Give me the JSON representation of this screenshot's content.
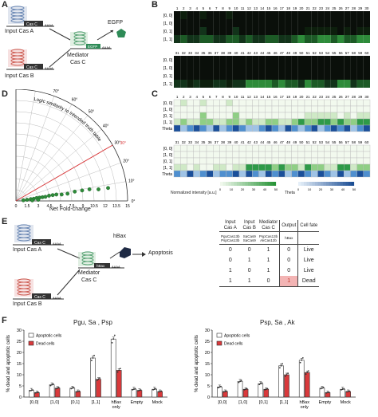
{
  "panels": {
    "A": "A",
    "B": "B",
    "C": "C",
    "D": "D",
    "E": "E",
    "F": "F"
  },
  "panelA": {
    "input_a": "Input Cas A",
    "input_b": "Input Cas B",
    "mediator": "Mediator\nCas C",
    "mediator_l1": "Mediator",
    "mediator_l2": "Cas C",
    "output": "EGFP",
    "cas_c": "Cas C",
    "egfp_box": "EGFP",
    "polyA": "AAAA"
  },
  "panelB": {
    "row_labels": [
      "[0, 0]",
      "[1, 0]",
      "[0, 1]",
      "[1, 1]"
    ],
    "top_numbers": [
      "1",
      "2",
      "3",
      "4",
      "5",
      "6",
      "7",
      "8",
      "9",
      "10",
      "11",
      "12",
      "13",
      "14",
      "15",
      "16",
      "17",
      "18",
      "19",
      "20",
      "21",
      "22",
      "23",
      "24",
      "25",
      "26",
      "27",
      "28",
      "29",
      "30"
    ],
    "bottom_numbers": [
      "31",
      "32",
      "33",
      "34",
      "35",
      "36",
      "37",
      "38",
      "39",
      "40",
      "41",
      "42",
      "43",
      "44",
      "45",
      "46",
      "47",
      "48",
      "49",
      "50",
      "51",
      "52",
      "53",
      "54",
      "55",
      "56",
      "57",
      "58",
      "59",
      "60"
    ]
  },
  "panelC": {
    "row_labels": [
      "[0, 0]",
      "[1, 0]",
      "[0, 1]",
      "[1, 1]",
      "Theta"
    ],
    "top_numbers": [
      "1",
      "2",
      "3",
      "4",
      "5",
      "6",
      "7",
      "8",
      "9",
      "10",
      "11",
      "12",
      "13",
      "14",
      "15",
      "16",
      "17",
      "18",
      "19",
      "20",
      "21",
      "22",
      "23",
      "24",
      "25",
      "26",
      "27",
      "28",
      "29",
      "30"
    ],
    "bottom_numbers": [
      "31",
      "32",
      "33",
      "34",
      "35",
      "36",
      "37",
      "38",
      "39",
      "40",
      "41",
      "42",
      "43",
      "44",
      "45",
      "46",
      "47",
      "48",
      "49",
      "50",
      "51",
      "52",
      "53",
      "54",
      "55",
      "56",
      "57",
      "58",
      "59",
      "60"
    ],
    "colorbar_label": "Normalized intensity [a.u.]",
    "colorbar_ticks": [
      "0",
      "10",
      "20",
      "30",
      "40",
      "50"
    ],
    "theta_label": "Theta",
    "theta_ticks": [
      "0",
      "10",
      "20",
      "30",
      "40",
      "50"
    ],
    "heat_top": [
      [
        0,
        1,
        0,
        0,
        1,
        0,
        0,
        0,
        1,
        0,
        0,
        0,
        0,
        0,
        0,
        0,
        0,
        0,
        0,
        0,
        0,
        0,
        0,
        0,
        0,
        0,
        0,
        0,
        0,
        0
      ],
      [
        0,
        0,
        0,
        0,
        0,
        0,
        0,
        0,
        0,
        0,
        0,
        0,
        0,
        0,
        0,
        0,
        0,
        0,
        0,
        0,
        0,
        0,
        0,
        0,
        0,
        0,
        0,
        0,
        0,
        0
      ],
      [
        0,
        0,
        0,
        0,
        2,
        0,
        0,
        0,
        0,
        2,
        0,
        0,
        0,
        0,
        0,
        0,
        0,
        0,
        0,
        0,
        1,
        1,
        1,
        1,
        1,
        0,
        1,
        0,
        1,
        1
      ],
      [
        1,
        2,
        1,
        1,
        2,
        2,
        1,
        1,
        2,
        2,
        1,
        2,
        1,
        1,
        2,
        2,
        1,
        1,
        2,
        3,
        2,
        2,
        3,
        3,
        2,
        3,
        2,
        2,
        3,
        3
      ]
    ],
    "theta_top": [
      3,
      1,
      2,
      3,
      2,
      1,
      3,
      1,
      2,
      3,
      2,
      1,
      1,
      2,
      3,
      2,
      1,
      3,
      2,
      1,
      2,
      3,
      1,
      2,
      3,
      2,
      3,
      1,
      2,
      3
    ],
    "heat_bottom": [
      [
        0,
        0,
        0,
        0,
        0,
        0,
        0,
        0,
        0,
        0,
        0,
        0,
        0,
        0,
        0,
        0,
        0,
        0,
        0,
        0,
        0,
        0,
        0,
        0,
        0,
        0,
        0,
        0,
        0,
        0
      ],
      [
        0,
        0,
        0,
        0,
        0,
        0,
        0,
        0,
        0,
        0,
        0,
        0,
        0,
        0,
        0,
        0,
        0,
        0,
        0,
        0,
        0,
        0,
        0,
        0,
        0,
        0,
        0,
        0,
        0,
        0
      ],
      [
        0,
        0,
        0,
        0,
        0,
        0,
        0,
        0,
        0,
        0,
        0,
        0,
        0,
        0,
        0,
        0,
        0,
        0,
        0,
        0,
        0,
        0,
        0,
        0,
        0,
        0,
        0,
        0,
        0,
        0
      ],
      [
        1,
        1,
        0,
        1,
        0,
        0,
        1,
        1,
        0,
        1,
        1,
        3,
        3,
        3,
        3,
        2,
        3,
        2,
        2,
        1,
        3,
        2,
        2,
        1,
        1,
        3,
        3,
        1,
        2,
        2
      ]
    ],
    "theta_bottom": [
      2,
      1,
      3,
      1,
      2,
      3,
      1,
      2,
      2,
      3,
      1,
      3,
      2,
      1,
      3,
      2,
      3,
      1,
      2,
      3,
      2,
      1,
      3,
      2,
      1,
      3,
      1,
      2,
      3,
      2
    ]
  },
  "panelD": {
    "xlabel": "Net Fold-change",
    "xticks": [
      "0",
      "1.5",
      "3",
      "4.5",
      "6",
      "7.5",
      "9",
      "10.5",
      "12",
      "13.5",
      "15"
    ],
    "angle_ticks": [
      "0°",
      "10°",
      "20°",
      "30°",
      "40°",
      "50°",
      "60°",
      "70°",
      "80°",
      "90°"
    ],
    "arc_label": "Logic similarity to intended truth table",
    "red_angle": "30°"
  },
  "chart_data": {
    "type": "scatter",
    "title": "",
    "xlabel": "Net Fold-change",
    "ylabel": "",
    "xlim": [
      0,
      15
    ],
    "points": [
      {
        "r": 1.0,
        "theta": 5
      },
      {
        "r": 1.5,
        "theta": 6
      },
      {
        "r": 2.0,
        "theta": 7
      },
      {
        "r": 2.4,
        "theta": 7
      },
      {
        "r": 2.8,
        "theta": 8
      },
      {
        "r": 3.2,
        "theta": 8
      },
      {
        "r": 3.6,
        "theta": 8
      },
      {
        "r": 4.0,
        "theta": 8
      },
      {
        "r": 4.5,
        "theta": 9
      },
      {
        "r": 5.0,
        "theta": 9
      },
      {
        "r": 5.5,
        "theta": 9
      },
      {
        "r": 6.2,
        "theta": 8
      },
      {
        "r": 7.0,
        "theta": 8
      },
      {
        "r": 8.0,
        "theta": 9
      },
      {
        "r": 9.0,
        "theta": 9
      },
      {
        "r": 10.0,
        "theta": 9
      },
      {
        "r": 11.2,
        "theta": 8
      },
      {
        "r": 12.5,
        "theta": 8
      },
      {
        "r": 2.2,
        "theta": 2
      },
      {
        "r": 3.0,
        "theta": 3
      }
    ]
  },
  "panelE": {
    "input_a": "Input Cas A",
    "input_b": "Input Cas B",
    "mediator_l1": "Mediator",
    "mediator_l2": "Cas C",
    "output": "hBax",
    "apoptosis": "Apoptosis",
    "table_headers": [
      "Input\nCas A",
      "Input\nCas B",
      "Mediator\nCas C",
      "Output",
      "Cell fate"
    ],
    "header_a1": "Input",
    "header_a2": "Cas A",
    "header_b1": "Input",
    "header_b2": "Cas B",
    "header_c1": "Mediator",
    "header_c2": "Cas C",
    "header_out": "Output",
    "header_fate": "Cell fate",
    "sub_a": [
      "PguCas13b",
      "PspCas13b"
    ],
    "sub_b": [
      "SaCas9",
      "SaCas9"
    ],
    "sub_c": [
      "PspCas13b",
      "AkCas12b"
    ],
    "sub_out": "hBax",
    "rows": [
      {
        "a": "0",
        "b": "0",
        "c": "1",
        "out": "0",
        "fate": "Live"
      },
      {
        "a": "0",
        "b": "1",
        "c": "1",
        "out": "0",
        "fate": "Live"
      },
      {
        "a": "1",
        "b": "0",
        "c": "1",
        "out": "0",
        "fate": "Live"
      },
      {
        "a": "1",
        "b": "1",
        "c": "0",
        "out": "1",
        "fate": "Dead"
      }
    ]
  },
  "panelF": {
    "left_title": "Pgu, Sa , Psp",
    "right_title": "Psp, Sa , Ak",
    "ylabel": "% dead and apoptotic cells",
    "yticks": [
      "0",
      "5",
      "10",
      "15",
      "20",
      "25",
      "30"
    ],
    "categories": [
      "[0,0]",
      "[1,0]",
      "[0,1]",
      "[1,1]",
      "hBax\nonly",
      "Empty",
      "Mock"
    ],
    "cat_labels": [
      "[0,0]",
      "[1,0]",
      "[0,1]",
      "[1,1]",
      "hBax",
      "Empty",
      "Mock"
    ],
    "cat_sub": [
      "",
      "",
      "",
      "",
      "only",
      "",
      ""
    ],
    "legend_apoptotic": "Apoptotic cells",
    "legend_dead": "Dead cells",
    "bar_apoptotic_color": "#ffffff",
    "bar_dead_color": "#d9393b",
    "left": {
      "apoptotic": [
        3.0,
        5.5,
        4.0,
        17.5,
        26.0,
        3.5,
        3.5
      ],
      "dead": [
        2.0,
        4.0,
        2.5,
        8.0,
        12.0,
        3.0,
        2.5
      ]
    },
    "right": {
      "apoptotic": [
        4.5,
        7.0,
        6.0,
        14.0,
        16.5,
        4.0,
        3.5
      ],
      "dead": [
        2.5,
        3.5,
        3.5,
        10.0,
        11.0,
        2.0,
        2.5
      ]
    }
  }
}
